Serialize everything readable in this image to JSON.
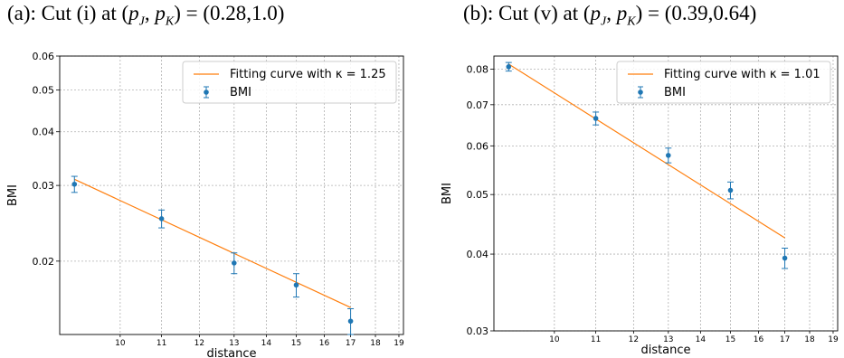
{
  "chart_data": [
    {
      "type": "scatter",
      "title": "(a): Cut (i) at (p_J, p_K) = (0.28,1.0)",
      "title_main": "(a): Cut (i) at (",
      "title_sub1": "J",
      "title_sub2": "K",
      "title_end": ") = (0.28,1.0)",
      "xlabel": "distance",
      "ylabel": "BMI",
      "xscale": "log",
      "yscale": "log",
      "xlim": [
        8.7,
        19.2
      ],
      "ylim": [
        0.0135,
        0.06
      ],
      "grid": true,
      "legend_position": "top-right",
      "x_ticks": [
        "10",
        "11",
        "12",
        "13",
        "14",
        "15",
        "16",
        "17",
        "18",
        "19"
      ],
      "y_ticks": [
        "0.02",
        "0.03",
        "0.04",
        "0.05",
        "0.06"
      ],
      "series": [
        {
          "name": "Fitting curve with κ = 1.25",
          "kind": "line",
          "color": "#ff7f0e",
          "x": [
            9,
            17
          ],
          "y": [
            0.031,
            0.0156
          ]
        },
        {
          "name": "BMI",
          "kind": "errorbar",
          "color": "#1f77b4",
          "x": [
            9,
            11,
            13,
            15,
            17
          ],
          "y": [
            0.0302,
            0.0251,
            0.0198,
            0.0176,
            0.0145
          ],
          "err": [
            0.0013,
            0.0012,
            0.0011,
            0.0011,
            0.001
          ]
        }
      ]
    },
    {
      "type": "scatter",
      "title": "(b): Cut (v) at (p_J, p_K) = (0.39,0.64)",
      "title_main": "(b): Cut (v) at (",
      "title_sub1": "J",
      "title_sub2": "K",
      "title_end": ") = (0.39,0.64)",
      "xlabel": "distance",
      "ylabel": "BMI",
      "xscale": "log",
      "yscale": "log",
      "xlim": [
        8.7,
        19.2
      ],
      "ylim": [
        0.03,
        0.084
      ],
      "grid": true,
      "legend_position": "top-right",
      "x_ticks": [
        "10",
        "11",
        "12",
        "13",
        "14",
        "15",
        "16",
        "17",
        "18",
        "19"
      ],
      "y_ticks": [
        "0.03",
        "0.04",
        "0.05",
        "0.06",
        "0.07",
        "0.08"
      ],
      "series": [
        {
          "name": "Fitting curve with κ = 1.01",
          "kind": "line",
          "color": "#ff7f0e",
          "x": [
            9,
            17
          ],
          "y": [
            0.0815,
            0.0425
          ]
        },
        {
          "name": "BMI",
          "kind": "errorbar",
          "color": "#1f77b4",
          "x": [
            9,
            11,
            13,
            15,
            17
          ],
          "y": [
            0.0807,
            0.0665,
            0.0579,
            0.0508,
            0.0394
          ],
          "err": [
            0.0013,
            0.0016,
            0.0016,
            0.0016,
            0.0015
          ]
        }
      ]
    }
  ]
}
